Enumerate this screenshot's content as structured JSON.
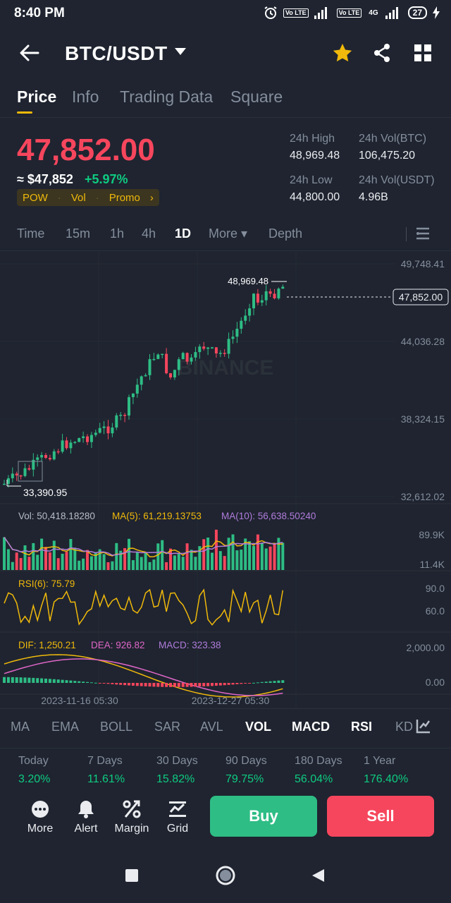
{
  "status_bar": {
    "time": "8:40 PM",
    "tag1": "Vo LTE",
    "tag2": "Vo LTE",
    "net": "4G",
    "battery": "27"
  },
  "header": {
    "pair": "BTC/USDT",
    "icons": [
      "back-arrow-icon",
      "star-icon",
      "share-icon",
      "grid-icon"
    ],
    "star_color": "#f0b90b"
  },
  "tabs": [
    {
      "label": "Price",
      "active": true
    },
    {
      "label": "Info",
      "active": false
    },
    {
      "label": "Trading Data",
      "active": false
    },
    {
      "label": "Square",
      "active": false
    }
  ],
  "price": {
    "last": "47,852.00",
    "usd": "≈ $47,852",
    "change": "+5.97%",
    "badges": [
      "POW",
      "Vol",
      "Promo"
    ],
    "badge_arrow": "›"
  },
  "stats": {
    "high_label": "24h High",
    "high_value": "48,969.48",
    "low_label": "24h Low",
    "low_value": "44,800.00",
    "vol_btc_label": "24h Vol(BTC)",
    "vol_btc_value": "106,475.20",
    "vol_usdt_label": "24h Vol(USDT)",
    "vol_usdt_value": "4.96B"
  },
  "timeframes": [
    {
      "label": "Time",
      "active": false
    },
    {
      "label": "15m",
      "active": false
    },
    {
      "label": "1h",
      "active": false
    },
    {
      "label": "4h",
      "active": false
    },
    {
      "label": "1D",
      "active": true
    },
    {
      "label": "More ▾",
      "active": false
    },
    {
      "label": "Depth",
      "active": false
    }
  ],
  "chart": {
    "axis": [
      "49,748.41",
      "44,036.28",
      "38,324.15",
      "32,612.02"
    ],
    "high_marker": "48,969.48",
    "low_marker": "33,390.95",
    "current_price": "47,852.00",
    "watermark": "BINANCE",
    "vol_label": "Vol: 50,418.18280",
    "ma5_label": "MA(5): 61,219.13753",
    "ma10_label": "MA(10): 56,638.50240",
    "vol_axis": [
      "89.9K",
      "11.4K"
    ],
    "rsi_label": "RSI(6): 75.79",
    "rsi_axis": [
      "90.0",
      "60.0"
    ],
    "dif_label": "DIF: 1,250.21",
    "dea_label": "DEA: 926.82",
    "macd_label": "MACD: 323.38",
    "macd_axis": [
      "2,000.00",
      "0.00"
    ],
    "dates": [
      "2023-11-16 05:30",
      "2023-12-27 05:30"
    ],
    "colors": {
      "up": "#2ebd85",
      "down": "#f6465d",
      "ma5": "#f0b90b",
      "ma10": "#b07cdb",
      "dea": "#e066c8"
    }
  },
  "indicators": [
    {
      "label": "MA",
      "active": false
    },
    {
      "label": "EMA",
      "active": false
    },
    {
      "label": "BOLL",
      "active": false
    },
    {
      "label": "SAR",
      "active": false
    },
    {
      "label": "AVL",
      "active": false
    },
    {
      "label": "VOL",
      "active": true
    },
    {
      "label": "MACD",
      "active": true
    },
    {
      "label": "RSI",
      "active": true
    },
    {
      "label": "KD",
      "active": false
    }
  ],
  "performance": [
    {
      "label": "Today",
      "value": "3.20%"
    },
    {
      "label": "7 Days",
      "value": "11.61%"
    },
    {
      "label": "30 Days",
      "value": "15.82%"
    },
    {
      "label": "90 Days",
      "value": "79.75%"
    },
    {
      "label": "180 Days",
      "value": "56.04%"
    },
    {
      "label": "1 Year",
      "value": "176.40%"
    }
  ],
  "actions": {
    "more": "More",
    "alert": "Alert",
    "margin": "Margin",
    "grid": "Grid",
    "buy": "Buy",
    "sell": "Sell"
  }
}
